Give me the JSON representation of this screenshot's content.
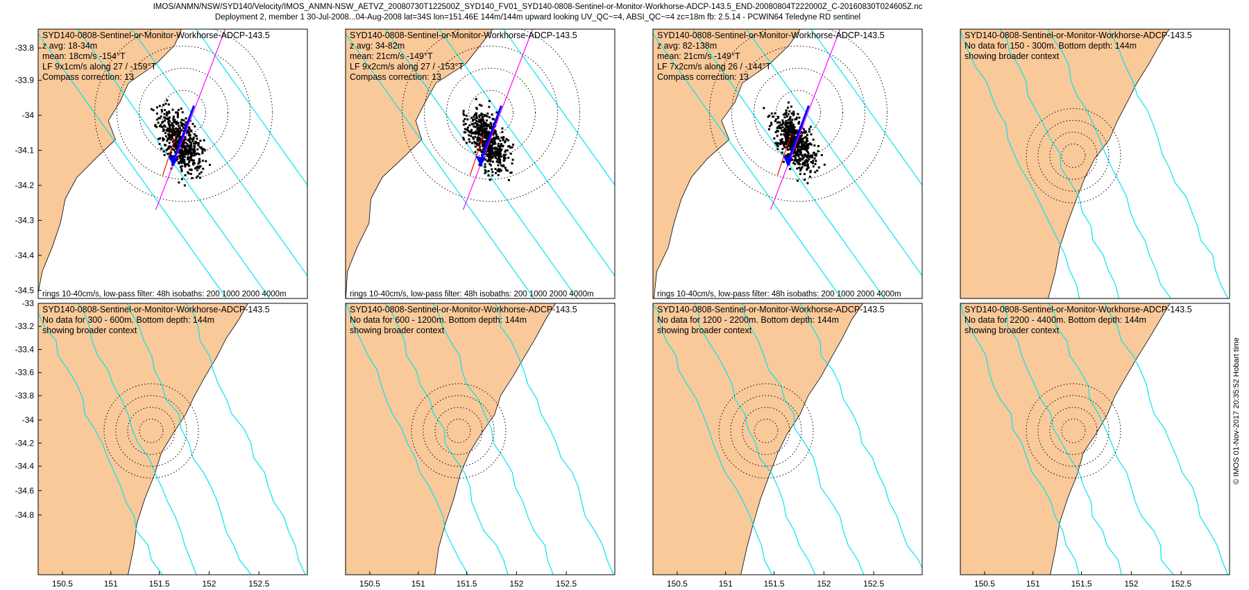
{
  "header": {
    "line1": "IMOS/ANMN/NSW/SYD140/Velocity/IMOS_ANMN-NSW_AETVZ_20080730T122500Z_SYD140_FV01_SYD140-0808-Sentinel-or-Monitor-Workhorse-ADCP-143.5_END-20080804T222000Z_C-20160830T024605Z.nc",
    "line2": "Deployment 2, member 1 30-Jul-2008...04-Aug-2008 lat=34S lon=151.46E 144m/144m upward looking UV_QC~=4, ABSI_QC~=4 zc=18m fb: 2.5.14 - PCWIN64 Teledyne RD sentinel"
  },
  "footer": {
    "credit": "© IMOS 01-Nov-2017 20:35:52 Hobart time"
  },
  "axes": {
    "x_ticks": [
      "150.5",
      "151",
      "151.5",
      "152",
      "152.5"
    ],
    "top_y_ticks": [
      "-33.8",
      "-33.9",
      "-34",
      "-34.1",
      "-34.2",
      "-34.3",
      "-34.4",
      "-34.5"
    ],
    "bottom_y_ticks": [
      "-33",
      "-33.2",
      "-33.4",
      "-33.6",
      "-33.8",
      "-34",
      "-34.2",
      "-34.4",
      "-34.6",
      "-34.8"
    ]
  },
  "colors": {
    "land": "#f9c99a",
    "isobath": "#00e5ee",
    "scatter": "#000000",
    "mean_arrow": "#0000ff",
    "axis_line": "#ff00ff",
    "low_pass": "#ff0000"
  },
  "panels": [
    {
      "id": "p1",
      "row": 0,
      "col": 0,
      "type": "data",
      "lines": [
        "SYD140-0808-Sentinel-or-Monitor-Workhorse-ADCP-143.5",
        "z avg: 18-34m",
        "mean: 18cm/s -154°T",
        "LF 9x1cm/s along 27 / -159°T",
        "Compass correction: 13"
      ],
      "footer": "rings 10-40cm/s, low-pass filter: 48h isobaths: 200 1000 2000 4000m"
    },
    {
      "id": "p2",
      "row": 0,
      "col": 1,
      "type": "data",
      "lines": [
        "SYD140-0808-Sentinel-or-Monitor-Workhorse-ADCP-143.5",
        "z avg: 34-82m",
        "mean: 21cm/s -149°T",
        "LF 9x2cm/s along 27 / -153°T",
        "Compass correction: 13"
      ],
      "footer": "rings 10-40cm/s, low-pass filter: 48h isobaths: 200 1000 2000 4000m"
    },
    {
      "id": "p3",
      "row": 0,
      "col": 2,
      "type": "data",
      "lines": [
        "SYD140-0808-Sentinel-or-Monitor-Workhorse-ADCP-143.5",
        "z avg: 82-138m",
        "mean: 21cm/s -149°T",
        "LF 7x2cm/s along 26 / -144°T",
        "Compass correction: 13"
      ],
      "footer": "rings 10-40cm/s, low-pass filter: 48h isobaths: 200 1000 2000 4000m"
    },
    {
      "id": "p4",
      "row": 0,
      "col": 3,
      "type": "nodata",
      "lines": [
        "SYD140-0808-Sentinel-or-Monitor-Workhorse-ADCP-143.5",
        "No data for 150 - 300m. Bottom depth: 144m",
        "showing broader context"
      ],
      "footer": ""
    },
    {
      "id": "p5",
      "row": 1,
      "col": 0,
      "type": "nodata",
      "lines": [
        "SYD140-0808-Sentinel-or-Monitor-Workhorse-ADCP-143.5",
        "No data for 300 - 600m. Bottom depth: 144m",
        "showing broader context"
      ],
      "footer": ""
    },
    {
      "id": "p6",
      "row": 1,
      "col": 1,
      "type": "nodata",
      "lines": [
        "SYD140-0808-Sentinel-or-Monitor-Workhorse-ADCP-143.5",
        "No data for 600 - 1200m. Bottom depth: 144m",
        "showing broader context"
      ],
      "footer": ""
    },
    {
      "id": "p7",
      "row": 1,
      "col": 2,
      "type": "nodata",
      "lines": [
        "SYD140-0808-Sentinel-or-Monitor-Workhorse-ADCP-143.5",
        "No data for 1200 - 2200m. Bottom depth: 144m",
        "showing broader context"
      ],
      "footer": ""
    },
    {
      "id": "p8",
      "row": 1,
      "col": 3,
      "type": "nodata",
      "lines": [
        "SYD140-0808-Sentinel-or-Monitor-Workhorse-ADCP-143.5",
        "No data for 2200 - 4400m. Bottom depth: 144m",
        "showing broader context"
      ],
      "footer": ""
    }
  ]
}
